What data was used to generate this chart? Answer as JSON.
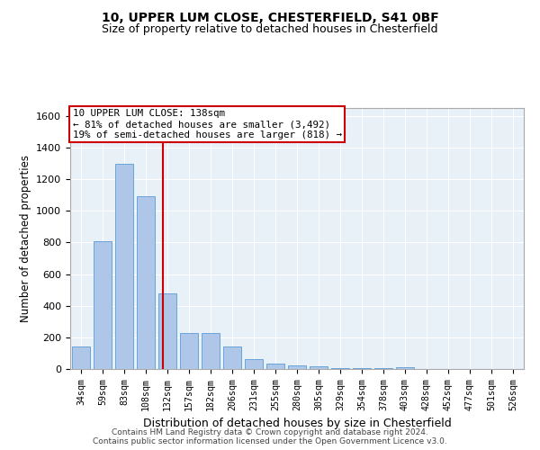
{
  "title1": "10, UPPER LUM CLOSE, CHESTERFIELD, S41 0BF",
  "title2": "Size of property relative to detached houses in Chesterfield",
  "xlabel": "Distribution of detached houses by size in Chesterfield",
  "ylabel": "Number of detached properties",
  "bar_labels": [
    "34sqm",
    "59sqm",
    "83sqm",
    "108sqm",
    "132sqm",
    "157sqm",
    "182sqm",
    "206sqm",
    "231sqm",
    "255sqm",
    "280sqm",
    "305sqm",
    "329sqm",
    "354sqm",
    "378sqm",
    "403sqm",
    "428sqm",
    "452sqm",
    "477sqm",
    "501sqm",
    "526sqm"
  ],
  "bar_values": [
    140,
    810,
    1300,
    1090,
    480,
    230,
    230,
    140,
    65,
    35,
    25,
    15,
    5,
    5,
    5,
    10,
    0,
    0,
    0,
    0,
    0
  ],
  "bar_color": "#aec6e8",
  "bar_edge_color": "#5b9bd5",
  "background_color": "#e8f0f8",
  "grid_color": "#ffffff",
  "property_label": "10 UPPER LUM CLOSE: 138sqm",
  "annotation_line1": "← 81% of detached houses are smaller (3,492)",
  "annotation_line2": "19% of semi-detached houses are larger (818) →",
  "vline_color": "#cc0000",
  "box_edge_color": "#cc0000",
  "ylim": [
    0,
    1650
  ],
  "yticks": [
    0,
    200,
    400,
    600,
    800,
    1000,
    1200,
    1400,
    1600
  ],
  "footer1": "Contains HM Land Registry data © Crown copyright and database right 2024.",
  "footer2": "Contains public sector information licensed under the Open Government Licence v3.0."
}
